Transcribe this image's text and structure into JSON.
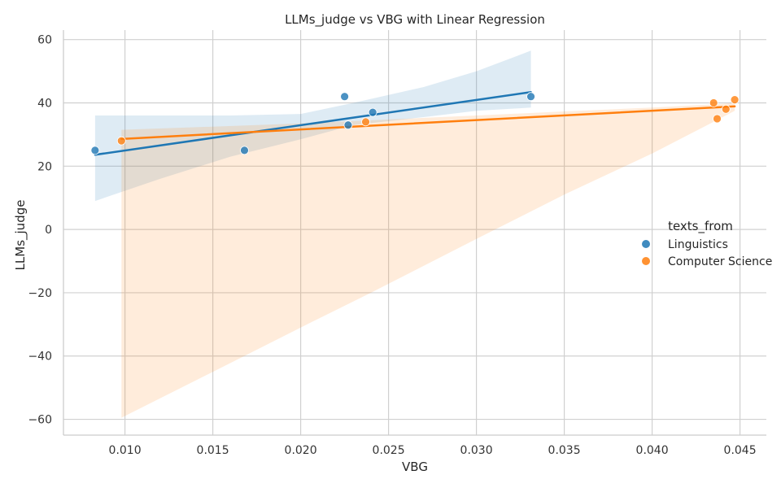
{
  "chart_data": {
    "type": "scatter",
    "title": "LLMs_judge vs VBG with Linear Regression",
    "xlabel": "VBG",
    "ylabel": "LLMs_judge",
    "xlim": [
      0.0065,
      0.0465
    ],
    "ylim": [
      -65,
      63
    ],
    "xticks": [
      0.01,
      0.015,
      0.02,
      0.025,
      0.03,
      0.035,
      0.04,
      0.045
    ],
    "xtick_labels": [
      "0.010",
      "0.015",
      "0.020",
      "0.025",
      "0.030",
      "0.035",
      "0.040",
      "0.045"
    ],
    "yticks": [
      -60,
      -40,
      -20,
      0,
      20,
      40,
      60
    ],
    "ytick_labels": [
      "−60",
      "−40",
      "−20",
      "0",
      "20",
      "40",
      "60"
    ],
    "grid": true,
    "legend": {
      "title": "texts_from",
      "placement": "center-right"
    },
    "series": [
      {
        "name": "Linguistics",
        "color": "#1f77b4",
        "points": [
          {
            "x": 0.0083,
            "y": 25
          },
          {
            "x": 0.0168,
            "y": 25
          },
          {
            "x": 0.0225,
            "y": 42
          },
          {
            "x": 0.0227,
            "y": 33
          },
          {
            "x": 0.0241,
            "y": 37
          },
          {
            "x": 0.0331,
            "y": 42
          }
        ],
        "regression": {
          "x": [
            0.0083,
            0.0331
          ],
          "y": [
            23.6,
            43.4
          ]
        },
        "ci_band": {
          "x": [
            0.0083,
            0.012,
            0.016,
            0.02,
            0.023,
            0.027,
            0.03,
            0.0331
          ],
          "upper": [
            36.0,
            36.0,
            36.0,
            36.5,
            40.0,
            45.0,
            50.0,
            56.5
          ],
          "lower": [
            9.0,
            16.0,
            23.0,
            28.5,
            33.0,
            35.5,
            37.5,
            38.5
          ]
        }
      },
      {
        "name": "Computer Science",
        "color": "#ff7f0e",
        "points": [
          {
            "x": 0.0098,
            "y": 28
          },
          {
            "x": 0.0237,
            "y": 34
          },
          {
            "x": 0.0435,
            "y": 40
          },
          {
            "x": 0.0437,
            "y": 35
          },
          {
            "x": 0.0442,
            "y": 38
          },
          {
            "x": 0.0447,
            "y": 41
          }
        ],
        "regression": {
          "x": [
            0.0098,
            0.0447
          ],
          "y": [
            28.6,
            38.9
          ]
        },
        "ci_band": {
          "x": [
            0.0098,
            0.015,
            0.02,
            0.024,
            0.03,
            0.035,
            0.04,
            0.0435,
            0.0447
          ],
          "upper": [
            31.5,
            32.5,
            33.5,
            34.5,
            36.0,
            37.3,
            38.5,
            39.5,
            40.0
          ],
          "lower": [
            -59.5,
            -45.0,
            -31.0,
            -20.0,
            -3.0,
            11.0,
            24.0,
            34.0,
            37.5
          ]
        }
      }
    ]
  }
}
